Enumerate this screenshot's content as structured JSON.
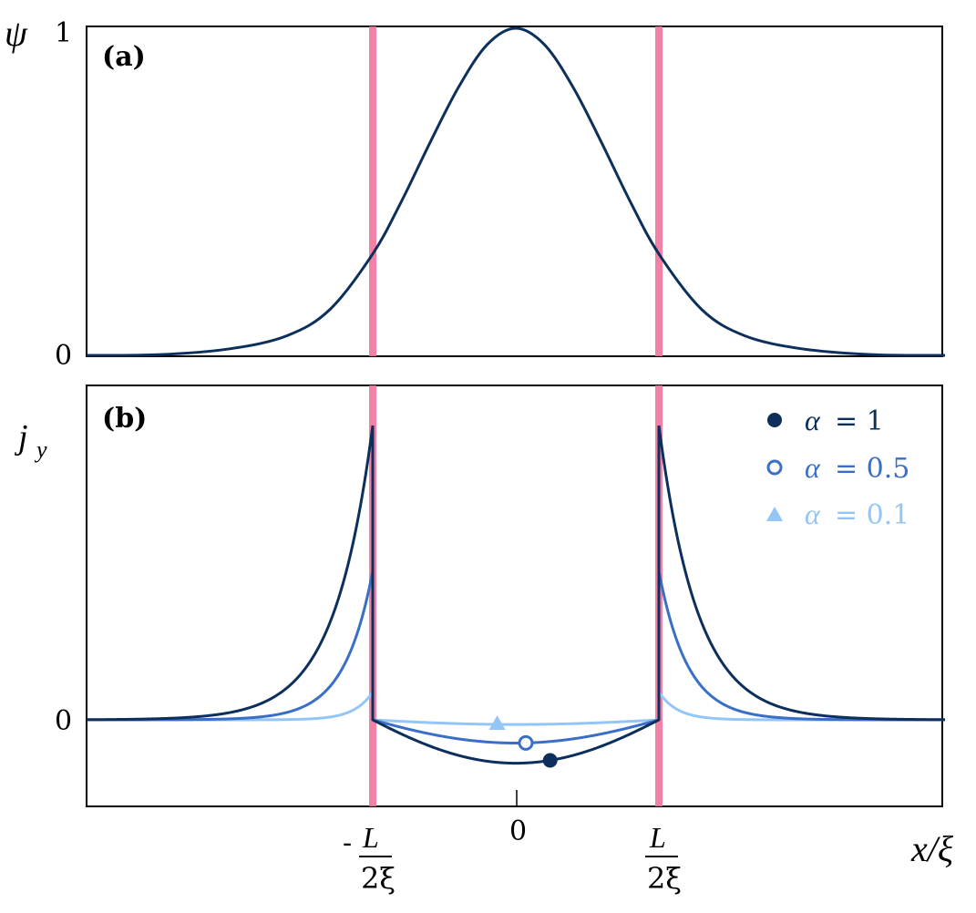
{
  "colors": {
    "boundary": "#f0749b",
    "alpha1": "#0d2f5c",
    "alpha05": "#3a6fc8",
    "alpha01": "#93c5f7",
    "frame": "#000000"
  },
  "chart_data": [
    {
      "panel": "(a)",
      "type": "line",
      "ylabel": "ψ",
      "yticks": [
        "0",
        "1"
      ],
      "ylim": [
        0,
        1
      ],
      "xlim": [
        -3,
        3
      ],
      "boundaries_x": [
        -1,
        1
      ],
      "series": [
        {
          "x": [
            -3,
            -2.5,
            -2,
            -1.6,
            -1.3,
            -1.0,
            -0.8,
            -0.6,
            -0.4,
            -0.2,
            0,
            0.2,
            0.4,
            0.6,
            0.8,
            1.0,
            1.3,
            1.6,
            2.0,
            2.5,
            3.0
          ],
          "y": [
            0.0,
            0.002,
            0.02,
            0.06,
            0.14,
            0.31,
            0.47,
            0.65,
            0.82,
            0.95,
            1.0,
            0.95,
            0.82,
            0.65,
            0.47,
            0.31,
            0.14,
            0.06,
            0.02,
            0.002,
            0.0
          ]
        }
      ]
    },
    {
      "panel": "(b)",
      "type": "line",
      "ylabel": "j",
      "ylabel_sub": "y",
      "xlabel": "x/ξ",
      "xtick_center": "0",
      "xtick_frac_num": "L",
      "xtick_frac_den": "2ξ",
      "xtick_minus": "-",
      "yticks": [
        "0"
      ],
      "ylim": [
        -0.3,
        1.0
      ],
      "xlim": [
        -3,
        3
      ],
      "boundaries_x": [
        -1,
        1
      ],
      "legend_position": "top-right",
      "series": [
        {
          "legend": "α = 1",
          "alpha_sym": "α",
          "alpha_val": "= 1",
          "marker": "filled-circle",
          "peak": 0.95,
          "dip": 0.14,
          "decay": 0.27,
          "marker_x": 0.24
        },
        {
          "legend": "α = 0.5",
          "alpha_sym": "α",
          "alpha_val": "= 0.5",
          "marker": "open-circle",
          "peak": 0.48,
          "dip": 0.075,
          "decay": 0.2,
          "marker_x": 0.07
        },
        {
          "legend": "α = 0.1",
          "alpha_sym": "α",
          "alpha_val": "= 0.1",
          "marker": "filled-triangle",
          "peak": 0.09,
          "dip": 0.015,
          "decay": 0.13,
          "marker_x": -0.13
        }
      ]
    }
  ]
}
